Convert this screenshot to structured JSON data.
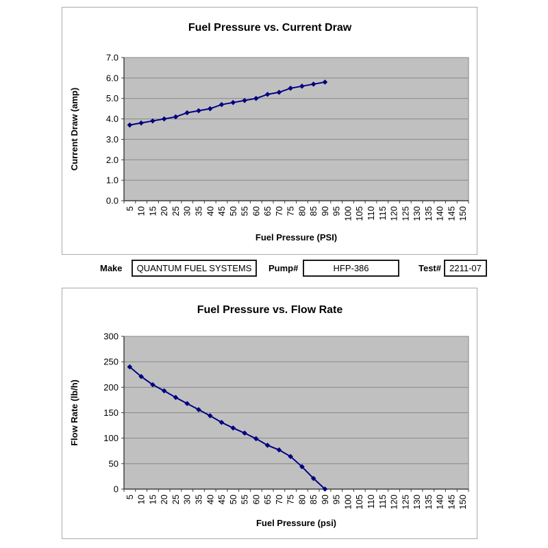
{
  "colors": {
    "page_bg": "#ffffff",
    "chart_border": "#a9a9a9",
    "axis": "#3a3a3a",
    "form_box_border": "#1a1a1a"
  },
  "form": {
    "make_label": "Make",
    "make_value": "QUANTUM FUEL SYSTEMS",
    "pump_label": "Pump#",
    "pump_value": "HFP-386",
    "test_label": "Test#",
    "test_value": "2211-07"
  },
  "chart_data": [
    {
      "type": "line",
      "title": "Fuel Pressure vs. Current Draw",
      "xlabel": "Fuel Pressure (PSI)",
      "ylabel": "Current Draw (amp)",
      "categories": [
        5,
        10,
        15,
        20,
        25,
        30,
        35,
        40,
        45,
        50,
        55,
        60,
        65,
        70,
        75,
        80,
        85,
        90,
        95,
        100,
        105,
        110,
        115,
        120,
        125,
        130,
        135,
        140,
        145,
        150
      ],
      "x": [
        5,
        10,
        15,
        20,
        25,
        30,
        35,
        40,
        45,
        50,
        55,
        60,
        65,
        70,
        75,
        80,
        85,
        90
      ],
      "values": [
        3.7,
        3.8,
        3.9,
        4.0,
        4.1,
        4.3,
        4.4,
        4.5,
        4.7,
        4.8,
        4.9,
        5.0,
        5.2,
        5.3,
        5.5,
        5.6,
        5.7,
        5.8
      ],
      "ylim": [
        0,
        7
      ],
      "yticks": [
        "0.0",
        "1.0",
        "2.0",
        "3.0",
        "4.0",
        "5.0",
        "6.0",
        "7.0"
      ],
      "grid": "horizontal",
      "legend": "none",
      "marker": "diamond",
      "series_color": "#000080",
      "plot_bg": "#c0c0c0",
      "grid_color": "#878787"
    },
    {
      "type": "line",
      "title": "Fuel Pressure vs. Flow Rate",
      "xlabel": "Fuel Pressure (psi)",
      "ylabel": "Flow Rate (lb/h)",
      "categories": [
        5,
        10,
        15,
        20,
        25,
        30,
        35,
        40,
        45,
        50,
        55,
        60,
        65,
        70,
        75,
        80,
        85,
        90,
        95,
        100,
        105,
        110,
        115,
        120,
        125,
        130,
        135,
        140,
        145,
        150
      ],
      "x": [
        5,
        10,
        15,
        20,
        25,
        30,
        35,
        40,
        45,
        50,
        55,
        60,
        65,
        70,
        75,
        80,
        85,
        90
      ],
      "values": [
        240,
        221,
        205,
        193,
        180,
        168,
        156,
        144,
        131,
        120,
        110,
        99,
        86,
        77,
        64,
        44,
        21,
        0
      ],
      "ylim": [
        0,
        300
      ],
      "yticks": [
        "0",
        "50",
        "100",
        "150",
        "200",
        "250",
        "300"
      ],
      "grid": "horizontal",
      "legend": "none",
      "marker": "diamond",
      "series_color": "#000080",
      "plot_bg": "#c0c0c0",
      "grid_color": "#878787"
    }
  ]
}
